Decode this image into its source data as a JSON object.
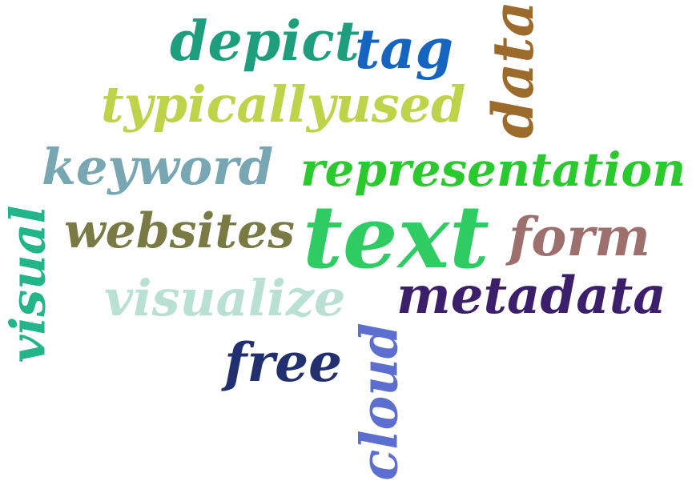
{
  "words": {
    "depict": {
      "text": "depict",
      "color": "#1f9e7e"
    },
    "tag": {
      "text": "tag",
      "color": "#1565c0"
    },
    "data": {
      "text": "data",
      "color": "#9c6a2a"
    },
    "typicallyused": {
      "text": "typicallyused",
      "color": "#bfd34a"
    },
    "keyword": {
      "text": "keyword",
      "color": "#78a7b3"
    },
    "representation": {
      "text": "representation",
      "color": "#2ac92e"
    },
    "websites": {
      "text": "websites",
      "color": "#7a7a45"
    },
    "text": {
      "text": "text",
      "color": "#2ecc63"
    },
    "form": {
      "text": "form",
      "color": "#9e706d"
    },
    "visual": {
      "text": "visual",
      "color": "#23b58a"
    },
    "visualize": {
      "text": "visualize",
      "color": "#b9e0d3"
    },
    "metadata": {
      "text": "metadata",
      "color": "#3b1f6b"
    },
    "free": {
      "text": "free",
      "color": "#233070"
    },
    "cloud": {
      "text": "cloud",
      "color": "#5c6fd0"
    }
  }
}
